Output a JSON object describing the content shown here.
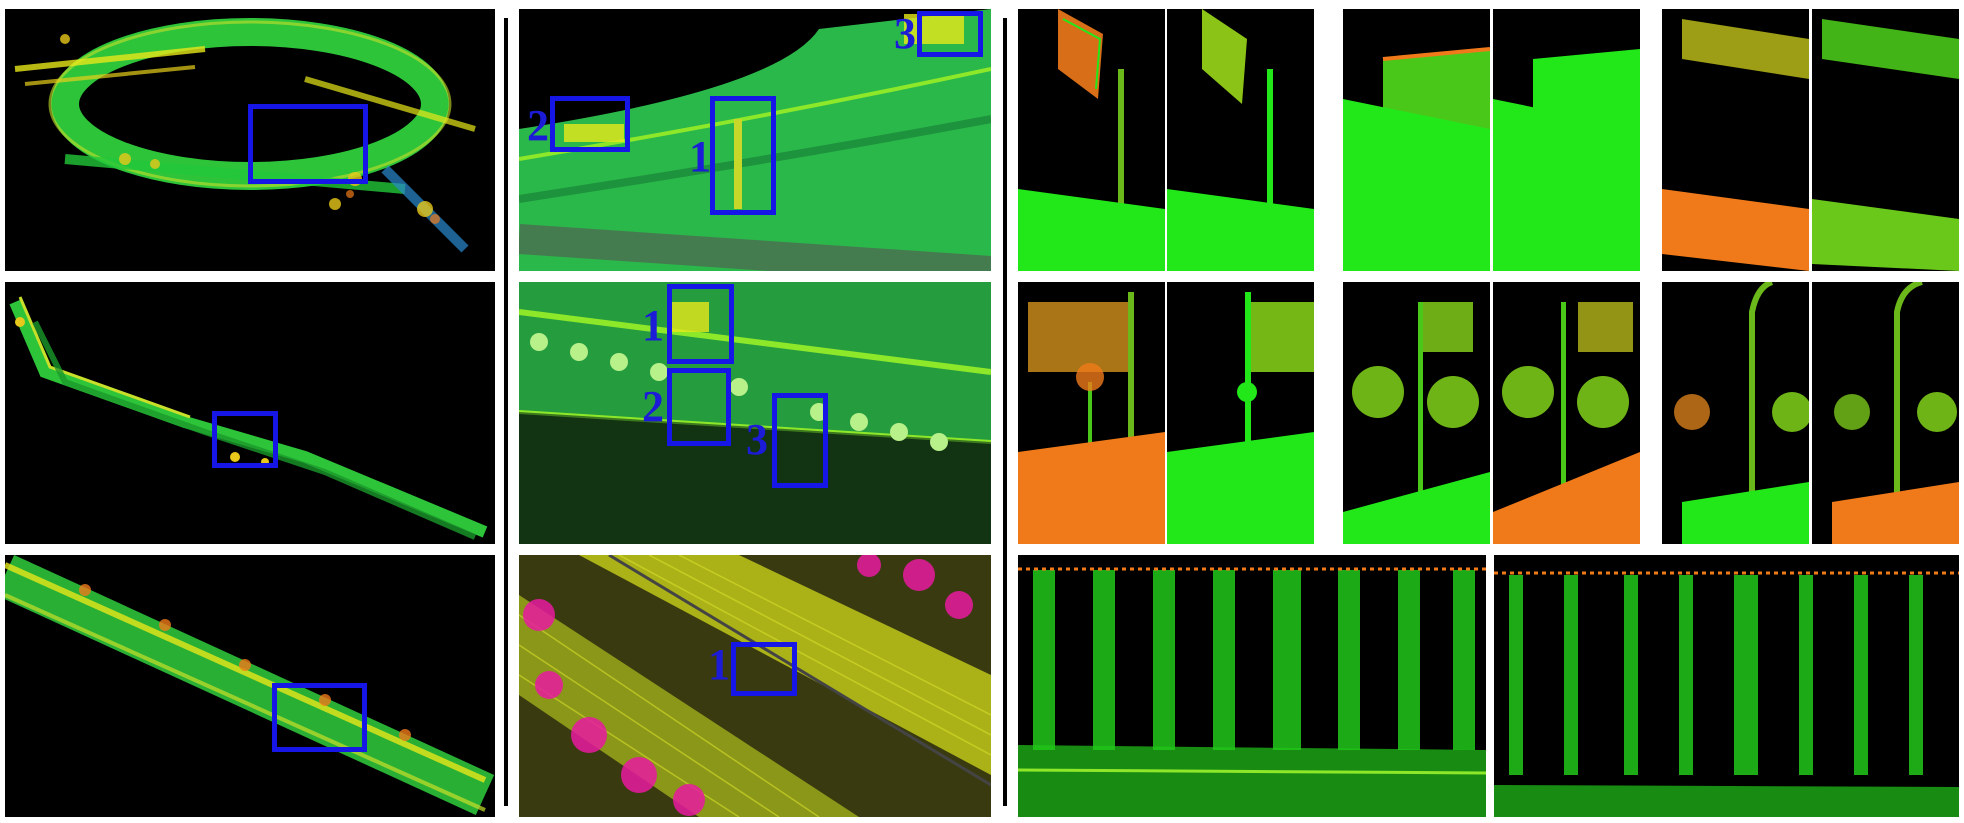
{
  "figure": {
    "colors": {
      "highlight_box": "#1616e6",
      "label_text": "#1b1bd8",
      "panel_background": "#000000",
      "divider": "#000000",
      "cloud_green": "#22e81a",
      "cloud_yellow": "#e8e81a",
      "cloud_orange": "#f07a1a",
      "cloud_magenta": "#e81aa0"
    },
    "columns": [
      "overview",
      "zoom-with-labels",
      "detail-comparisons"
    ],
    "labels": {
      "zoom_top": [
        "3",
        "2",
        "1"
      ],
      "zoom_mid": [
        "1",
        "2",
        "3"
      ],
      "zoom_bottom": [
        "1"
      ]
    }
  }
}
